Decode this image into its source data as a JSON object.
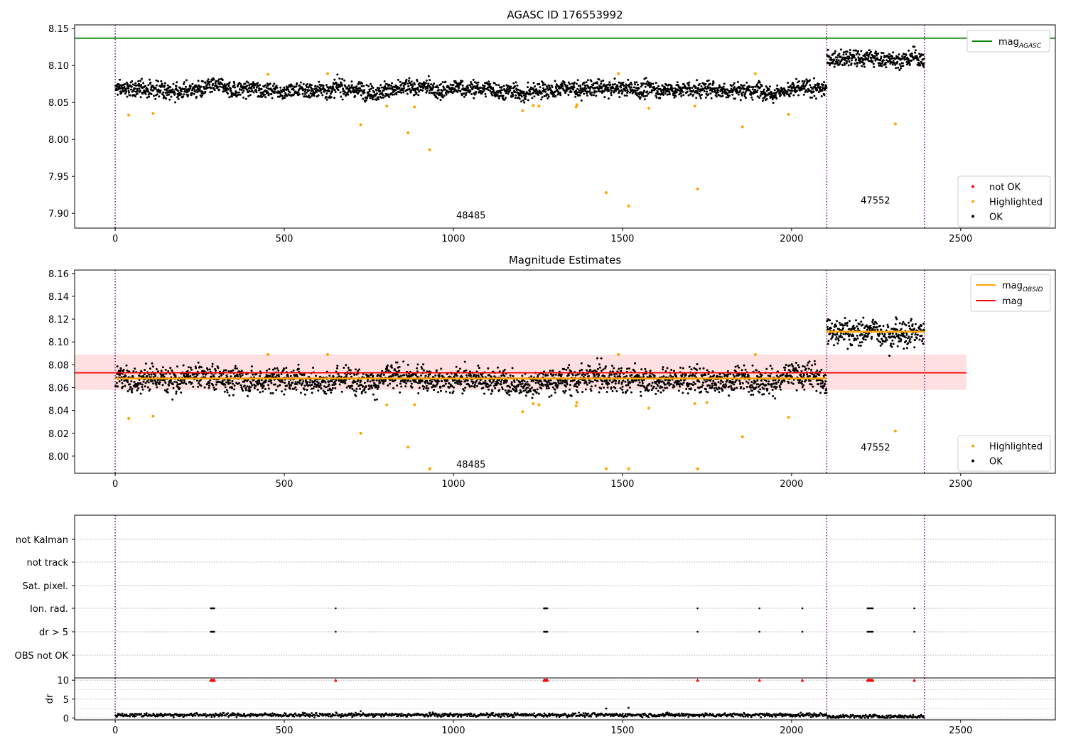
{
  "chart_data": [
    {
      "type": "scatter",
      "title": "AGASC ID 176553992",
      "xlabel": "",
      "ylabel": "",
      "xlim": [
        -120,
        2780
      ],
      "ylim": [
        7.88,
        8.155
      ],
      "xticks": [
        0,
        500,
        1000,
        1500,
        2000,
        2500
      ],
      "yticks": [
        7.9,
        7.95,
        8.0,
        8.05,
        8.1,
        8.15
      ],
      "ytick_labels": [
        "7.90",
        "7.95",
        "8.00",
        "8.05",
        "8.10",
        "8.15"
      ],
      "grid": false,
      "legend_upper": {
        "placement": "upper-right",
        "entries": [
          {
            "label": "mag",
            "sub": "AGASC",
            "color": "#008000",
            "marker": "line"
          }
        ]
      },
      "legend_lower": {
        "placement": "lower-right",
        "entries": [
          {
            "label": "not OK",
            "color": "#ff0000",
            "marker": "dot"
          },
          {
            "label": "Highlighted",
            "color": "#ffa500",
            "marker": "dot"
          },
          {
            "label": "OK",
            "color": "#000000",
            "marker": "dot"
          }
        ]
      },
      "hlines": [
        {
          "name": "mag_AGASC",
          "y": 8.137,
          "x_range": [
            -120,
            2780
          ],
          "color": "#008000"
        }
      ],
      "vlines": [
        0,
        2104,
        2393
      ],
      "annotations": [
        {
          "text": "48485",
          "x": 1052,
          "y": 7.893
        },
        {
          "text": "47552",
          "x": 2248,
          "y": 7.913
        }
      ],
      "segments": [
        {
          "name": "48485",
          "x_range": [
            0,
            2104
          ],
          "mean": 8.068,
          "spread": 0.0055,
          "dip": {
            "x": 1200,
            "depth": 0.006
          }
        },
        {
          "name": "47552",
          "x_range": [
            2104,
            2393
          ],
          "mean": 8.109,
          "spread": 0.0055
        }
      ],
      "series": [
        {
          "name": "Highlighted",
          "color": "#ffa500",
          "points": [
            [
              40,
              8.033
            ],
            [
              112,
              8.035
            ],
            [
              452,
              8.088
            ],
            [
              628,
              8.089
            ],
            [
              726,
              8.02
            ],
            [
              803,
              8.045
            ],
            [
              866,
              8.009
            ],
            [
              885,
              8.044
            ],
            [
              930,
              7.986
            ],
            [
              1205,
              8.039
            ],
            [
              1236,
              8.046
            ],
            [
              1253,
              8.045
            ],
            [
              1363,
              8.044
            ],
            [
              1365,
              8.047
            ],
            [
              1452,
              7.928
            ],
            [
              1488,
              8.089
            ],
            [
              1518,
              7.91
            ],
            [
              1578,
              8.042
            ],
            [
              1714,
              8.045
            ],
            [
              1722,
              7.933
            ],
            [
              1855,
              8.017
            ],
            [
              1893,
              8.089
            ],
            [
              1991,
              8.034
            ],
            [
              2307,
              8.021
            ]
          ]
        }
      ]
    },
    {
      "type": "scatter",
      "title": "Magnitude Estimates",
      "xlabel": "",
      "ylabel": "",
      "xlim": [
        -120,
        2780
      ],
      "ylim": [
        7.985,
        8.163
      ],
      "xticks": [
        0,
        500,
        1000,
        1500,
        2000,
        2500
      ],
      "yticks": [
        8.0,
        8.02,
        8.04,
        8.06,
        8.08,
        8.1,
        8.12,
        8.14,
        8.16
      ],
      "ytick_labels": [
        "8.00",
        "8.02",
        "8.04",
        "8.06",
        "8.08",
        "8.10",
        "8.12",
        "8.14",
        "8.16"
      ],
      "grid": false,
      "legend_upper": {
        "placement": "upper-right",
        "entries": [
          {
            "label": "mag",
            "sub": "OBSID",
            "color": "#ffa500",
            "marker": "line"
          },
          {
            "label": "mag",
            "sub": "",
            "color": "#ff0000",
            "marker": "line"
          }
        ]
      },
      "legend_lower": {
        "placement": "lower-right",
        "entries": [
          {
            "label": "Highlighted",
            "color": "#ffa500",
            "marker": "dot"
          },
          {
            "label": "OK",
            "color": "#000000",
            "marker": "dot"
          }
        ]
      },
      "bands": [
        {
          "y_range": [
            8.058,
            8.089
          ],
          "x_range": [
            -120,
            2517
          ],
          "color": "#ffdddd"
        }
      ],
      "hlines": [
        {
          "name": "mag",
          "y": 8.073,
          "x_range": [
            -120,
            2517
          ],
          "color": "#ff0000"
        },
        {
          "name": "mag_OBSID 48485",
          "y": 8.068,
          "x_range": [
            0,
            2104
          ],
          "color": "#ffa500"
        },
        {
          "name": "mag_OBSID 47552",
          "y": 8.109,
          "x_range": [
            2104,
            2393
          ],
          "color": "#ffa500"
        }
      ],
      "vlines": [
        0,
        2104,
        2393
      ],
      "annotations": [
        {
          "text": "48485",
          "x": 1052,
          "y": 7.99
        },
        {
          "text": "47552",
          "x": 2248,
          "y": 8.005
        }
      ],
      "segments": [
        {
          "name": "48485",
          "x_range": [
            0,
            2104
          ],
          "mean": 8.068,
          "spread": 0.0055,
          "dip": {
            "x": 1200,
            "depth": 0.006
          }
        },
        {
          "name": "47552",
          "x_range": [
            2104,
            2393
          ],
          "mean": 8.109,
          "spread": 0.0055
        }
      ],
      "series": [
        {
          "name": "Highlighted",
          "color": "#ffa500",
          "points": [
            [
              40,
              8.033
            ],
            [
              112,
              8.035
            ],
            [
              452,
              8.089
            ],
            [
              628,
              8.089
            ],
            [
              726,
              8.02
            ],
            [
              803,
              8.045
            ],
            [
              866,
              8.008
            ],
            [
              885,
              8.045
            ],
            [
              1205,
              8.039
            ],
            [
              1236,
              8.046
            ],
            [
              1253,
              8.045
            ],
            [
              1363,
              8.044
            ],
            [
              1365,
              8.047
            ],
            [
              1488,
              8.089
            ],
            [
              1578,
              8.042
            ],
            [
              1714,
              8.046
            ],
            [
              1750,
              8.047
            ],
            [
              1855,
              8.017
            ],
            [
              1893,
              8.089
            ],
            [
              1991,
              8.034
            ],
            [
              2307,
              8.022
            ]
          ]
        },
        {
          "name": "Highlighted (below range)",
          "color": "#ffa500",
          "marker": "triangle-down",
          "x": [
            930,
            1452,
            1518,
            1722
          ]
        }
      ]
    },
    {
      "type": "scatter",
      "title": "",
      "xlabel": "",
      "ylabel": "",
      "xlim": [
        -120,
        2780
      ],
      "flag_rows": [
        "not Kalman",
        "not track",
        "Sat. pixel.",
        "Ion. rad.",
        "dr > 5",
        "OBS not OK"
      ],
      "grid": true,
      "vlines": [
        0,
        2104,
        2393
      ],
      "flags": [
        {
          "row": "Ion. rad.",
          "x": [
            283,
            285,
            287,
            289,
            291,
            293,
            652,
            1268,
            1270,
            1272,
            1274,
            1276,
            1278,
            1722,
            1905,
            2032,
            2225,
            2228,
            2231,
            2234,
            2237,
            2240,
            2363
          ]
        },
        {
          "row": "dr > 5",
          "x": [
            283,
            285,
            287,
            289,
            291,
            293,
            652,
            1268,
            1270,
            1272,
            1274,
            1276,
            1278,
            1722,
            1905,
            2032,
            2225,
            2228,
            2231,
            2234,
            2237,
            2240,
            2363
          ]
        }
      ]
    },
    {
      "type": "scatter",
      "title": "",
      "xlabel": "",
      "ylabel": "dr",
      "xlim": [
        -120,
        2780
      ],
      "ylim": [
        -0.5,
        10.6
      ],
      "yticks": [
        0,
        5,
        10
      ],
      "ytick_labels": [
        "0",
        "5",
        "10"
      ],
      "xticks": [
        0,
        500,
        1000,
        1500,
        2000,
        2500
      ],
      "grid": true,
      "vlines": [
        0,
        2104,
        2393
      ],
      "baseline": [
        {
          "x_range": [
            0,
            2104
          ],
          "y": 0.8
        },
        {
          "x_range": [
            2104,
            2393
          ],
          "y": 0.4
        }
      ],
      "series": [
        {
          "name": "dr outliers",
          "color": "#000000",
          "points": [
            [
              1452,
              2.5
            ],
            [
              1518,
              2.7
            ],
            [
              930,
              1.4
            ],
            [
              726,
              1.8
            ]
          ]
        },
        {
          "name": "dr > 10 (clipped)",
          "color": "#ff0000",
          "marker": "triangle-up",
          "x": [
            283,
            285,
            287,
            289,
            291,
            293,
            652,
            1268,
            1270,
            1272,
            1274,
            1276,
            1278,
            1722,
            1905,
            2032,
            2225,
            2228,
            2231,
            2234,
            2237,
            2240,
            2363
          ]
        }
      ]
    }
  ]
}
